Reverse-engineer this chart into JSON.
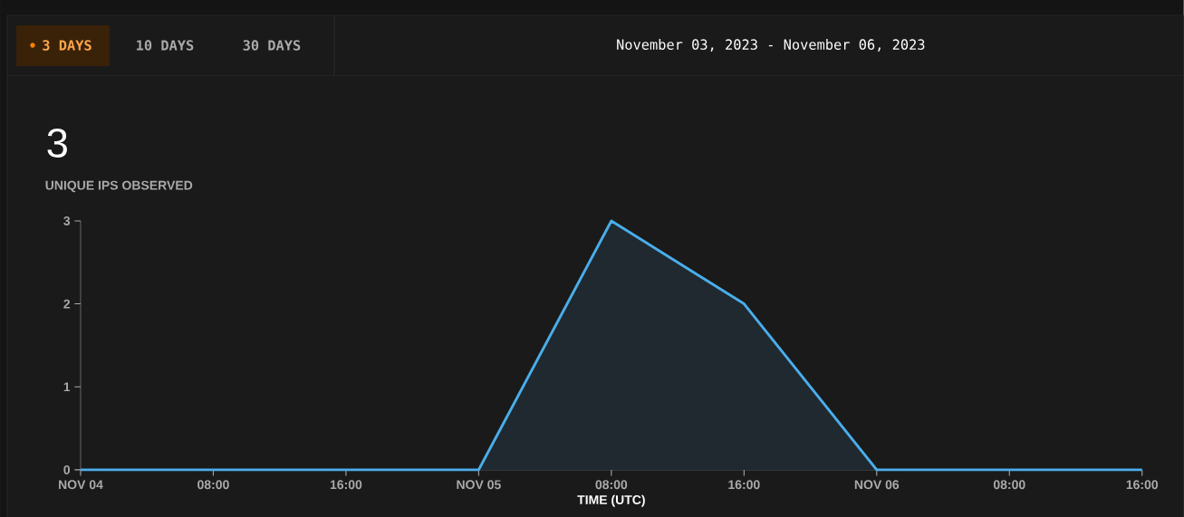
{
  "chart_data": {
    "type": "area",
    "title": "3",
    "subtitle": "UNIQUE IPS OBSERVED",
    "xlabel": "TIME (UTC)",
    "annotations": [
      "3 DAYS",
      "10 DAYS",
      "30 DAYS",
      "November 03, 2023 - November 06, 2023"
    ],
    "x": [
      "2023-11-04T00:00",
      "2023-11-04T08:00",
      "2023-11-04T16:00",
      "2023-11-05T00:00",
      "2023-11-05T08:00",
      "2023-11-05T16:00",
      "2023-11-06T00:00",
      "2023-11-06T08:00",
      "2023-11-06T16:00"
    ],
    "values": [
      0,
      0,
      0,
      0,
      3,
      2,
      0,
      0,
      0
    ],
    "color": "#4aaeea",
    "xlim": [
      "2023-11-04T00:00",
      "2023-11-06T16:00"
    ],
    "xticks": [
      {
        "value": "2023-11-04T00:00",
        "label": "NOV 04"
      },
      {
        "value": "2023-11-04T08:00",
        "label": "08:00"
      },
      {
        "value": "2023-11-04T16:00",
        "label": "16:00"
      },
      {
        "value": "2023-11-05T00:00",
        "label": "NOV 05"
      },
      {
        "value": "2023-11-05T08:00",
        "label": "08:00"
      },
      {
        "value": "2023-11-05T16:00",
        "label": "16:00"
      },
      {
        "value": "2023-11-06T00:00",
        "label": "NOV 06"
      },
      {
        "value": "2023-11-06T08:00",
        "label": "08:00"
      },
      {
        "value": "2023-11-06T16:00",
        "label": "16:00"
      }
    ],
    "ylim": [
      0,
      3
    ],
    "yticks": [
      0,
      1,
      2,
      3
    ],
    "grid": false,
    "marker": "none",
    "line_style": "solid"
  }
}
